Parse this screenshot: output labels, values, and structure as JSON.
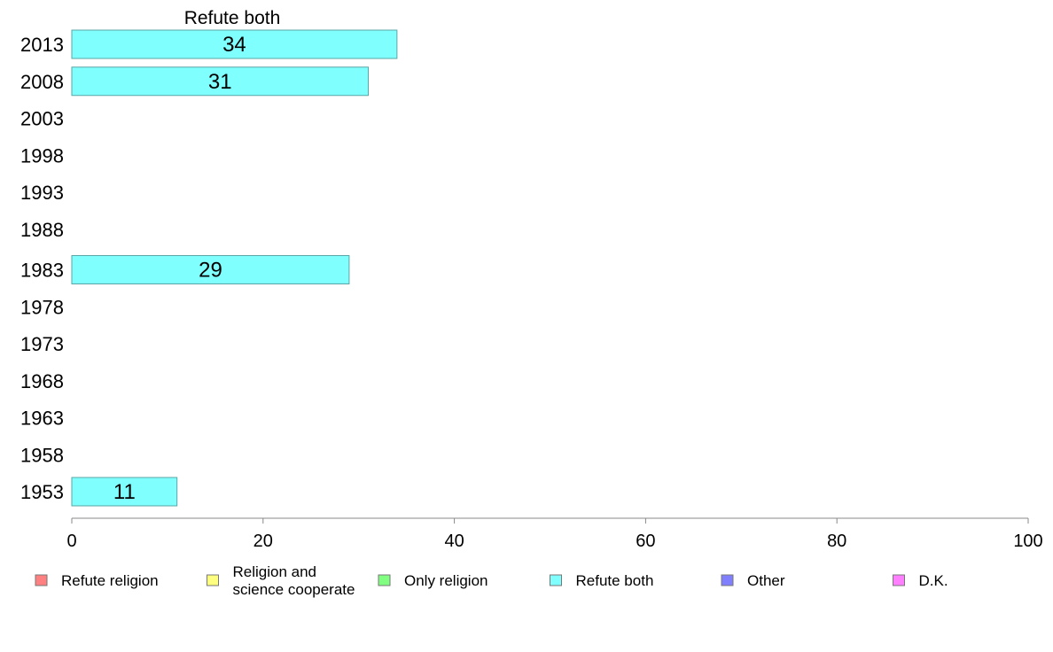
{
  "chart_data": {
    "type": "bar",
    "orientation": "horizontal",
    "title": "Refute both",
    "categories": [
      "2013",
      "2008",
      "2003",
      "1998",
      "1993",
      "1988",
      "1983",
      "1978",
      "1973",
      "1968",
      "1963",
      "1958",
      "1953"
    ],
    "series": [
      {
        "name": "Refute both",
        "color": "#80ffff",
        "values": [
          34,
          31,
          null,
          null,
          null,
          null,
          29,
          null,
          null,
          null,
          null,
          null,
          11
        ]
      }
    ],
    "xlim": [
      0,
      100
    ],
    "xticks": [
      "0",
      "20",
      "40",
      "60",
      "80",
      "100"
    ],
    "grid": false,
    "legend_position": "bottom",
    "legend": [
      {
        "lines": [
          "Refute religion"
        ],
        "color": "#ff8080"
      },
      {
        "lines": [
          "Religion and",
          "science cooperate"
        ],
        "color": "#ffff80"
      },
      {
        "lines": [
          "Only religion"
        ],
        "color": "#80ff80"
      },
      {
        "lines": [
          "Refute both"
        ],
        "color": "#80ffff"
      },
      {
        "lines": [
          "Other"
        ],
        "color": "#8080ff"
      },
      {
        "lines": [
          "D.K."
        ],
        "color": "#ff80ff"
      }
    ]
  }
}
